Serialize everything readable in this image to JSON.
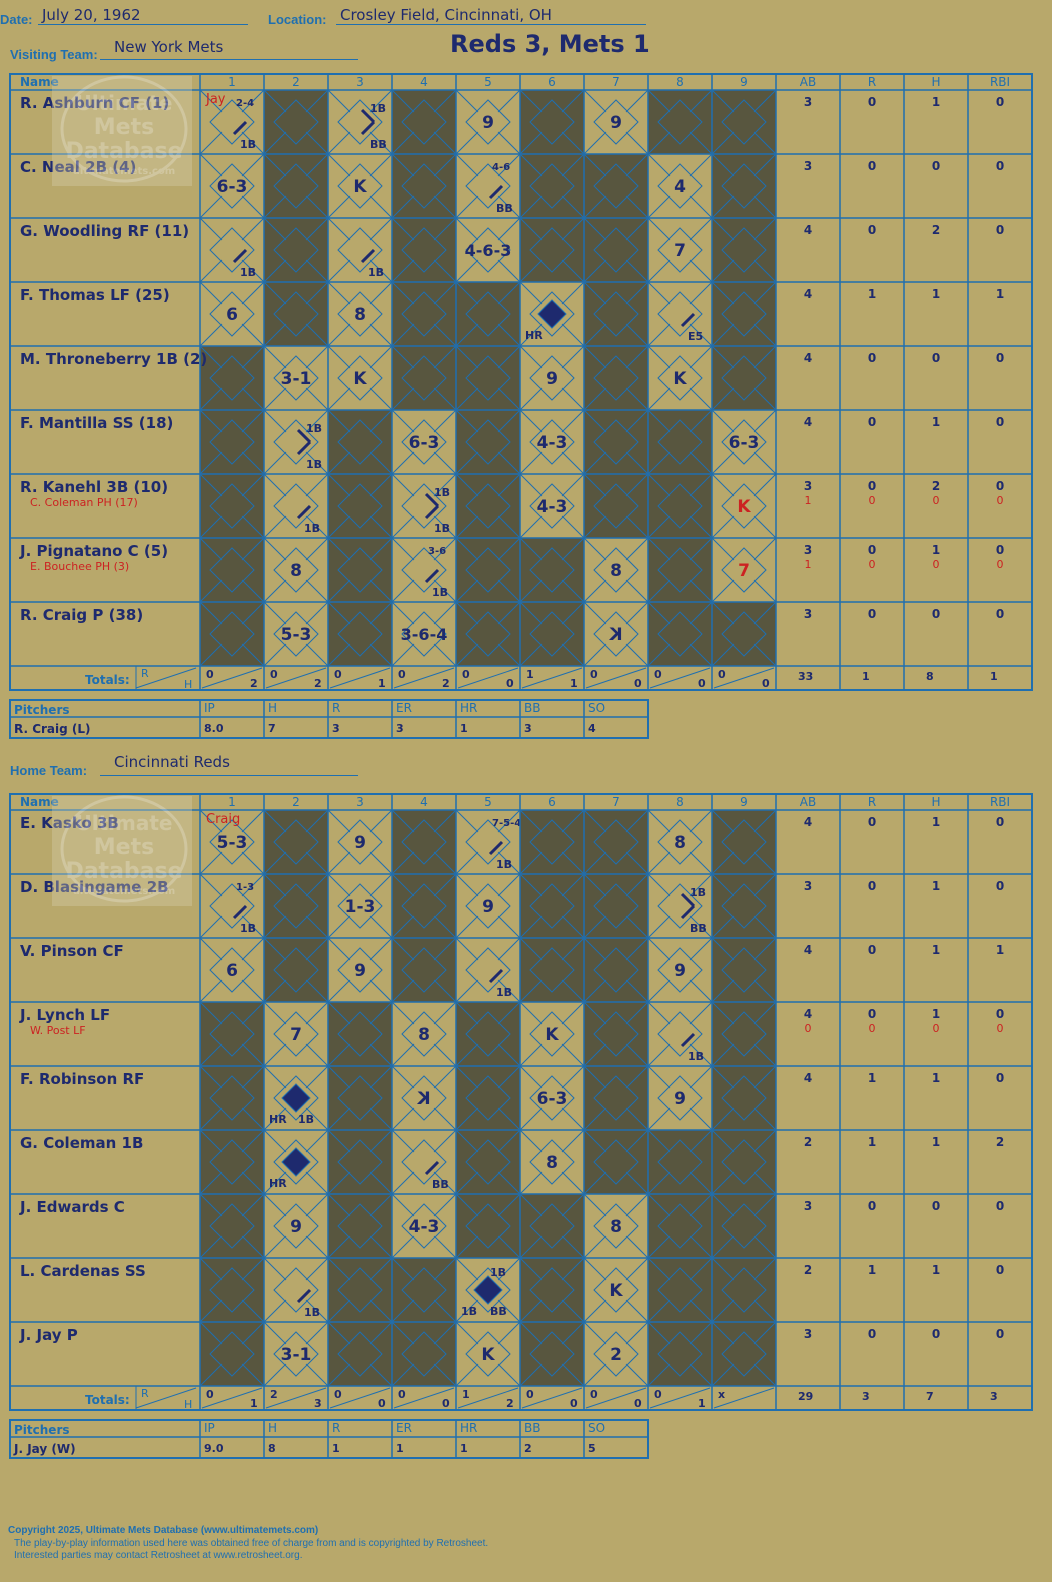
{
  "header": {
    "date_label": "Date:",
    "date": "July 20, 1962",
    "location_label": "Location:",
    "location": "Crosley Field, Cincinnati, OH",
    "title": "Reds 3, Mets 1",
    "visiting_label": "Visiting Team:",
    "visiting_team": "New York Mets",
    "home_label": "Home Team:",
    "home_team": "Cincinnati Reds"
  },
  "grid_labels": {
    "name": "Name",
    "innings": [
      "1",
      "2",
      "3",
      "4",
      "5",
      "6",
      "7",
      "8",
      "9"
    ],
    "stats": [
      "AB",
      "R",
      "H",
      "RBI"
    ],
    "totals": "Totals:",
    "r": "R",
    "h": "H"
  },
  "watermark": {
    "line1": "Ultimate",
    "line2": "Mets",
    "line3": "Database",
    "line4": "ultimatemets.com"
  },
  "visitors": {
    "first_pitcher_note": "Jay",
    "players": [
      {
        "name": "R. Ashburn CF (1)",
        "sub": "",
        "stats": [
          "3",
          "0",
          "1",
          "0"
        ],
        "sub_stats": null
      },
      {
        "name": "C. Neal 2B (4)",
        "sub": "",
        "stats": [
          "3",
          "0",
          "0",
          "0"
        ],
        "sub_stats": null
      },
      {
        "name": "G. Woodling RF (11)",
        "sub": "",
        "stats": [
          "4",
          "0",
          "2",
          "0"
        ],
        "sub_stats": null
      },
      {
        "name": "F. Thomas LF (25)",
        "sub": "",
        "stats": [
          "4",
          "1",
          "1",
          "1"
        ],
        "sub_stats": null
      },
      {
        "name": "M. Throneberry 1B (2)",
        "sub": "",
        "stats": [
          "4",
          "0",
          "0",
          "0"
        ],
        "sub_stats": null
      },
      {
        "name": "F. Mantilla SS (18)",
        "sub": "",
        "stats": [
          "4",
          "0",
          "1",
          "0"
        ],
        "sub_stats": null
      },
      {
        "name": "R. Kanehl 3B (10)",
        "sub": "C. Coleman PH (17)",
        "stats": [
          "3",
          "0",
          "2",
          "0"
        ],
        "sub_stats": [
          "1",
          "0",
          "0",
          "0"
        ]
      },
      {
        "name": "J. Pignatano C (5)",
        "sub": "E. Bouchee PH (3)",
        "stats": [
          "3",
          "0",
          "1",
          "0"
        ],
        "sub_stats": [
          "1",
          "0",
          "0",
          "0"
        ]
      },
      {
        "name": "R. Craig P (38)",
        "sub": "",
        "stats": [
          "3",
          "0",
          "0",
          "0"
        ],
        "sub_stats": null
      }
    ],
    "totals": [
      [
        "0",
        "2"
      ],
      [
        "0",
        "2"
      ],
      [
        "0",
        "1"
      ],
      [
        "0",
        "2"
      ],
      [
        "0",
        "0"
      ],
      [
        "1",
        "1"
      ],
      [
        "0",
        "0"
      ],
      [
        "0",
        "0"
      ],
      [
        "0",
        "0"
      ]
    ],
    "total_stats": [
      "33",
      "1",
      "8",
      "1"
    ]
  },
  "home": {
    "first_pitcher_note": "Craig",
    "players": [
      {
        "name": "E. Kasko 3B",
        "sub": "",
        "stats": [
          "4",
          "0",
          "1",
          "0"
        ],
        "sub_stats": null
      },
      {
        "name": "D. Blasingame 2B",
        "sub": "",
        "stats": [
          "3",
          "0",
          "1",
          "0"
        ],
        "sub_stats": null
      },
      {
        "name": "V. Pinson CF",
        "sub": "",
        "stats": [
          "4",
          "0",
          "1",
          "1"
        ],
        "sub_stats": null
      },
      {
        "name": "J. Lynch LF",
        "sub": "W. Post LF",
        "stats": [
          "4",
          "0",
          "1",
          "0"
        ],
        "sub_stats": [
          "0",
          "0",
          "0",
          "0"
        ]
      },
      {
        "name": "F. Robinson RF",
        "sub": "",
        "stats": [
          "4",
          "1",
          "1",
          "0"
        ],
        "sub_stats": null
      },
      {
        "name": "G. Coleman 1B",
        "sub": "",
        "stats": [
          "2",
          "1",
          "1",
          "2"
        ],
        "sub_stats": null
      },
      {
        "name": "J. Edwards C",
        "sub": "",
        "stats": [
          "3",
          "0",
          "0",
          "0"
        ],
        "sub_stats": null
      },
      {
        "name": "L. Cardenas SS",
        "sub": "",
        "stats": [
          "2",
          "1",
          "1",
          "0"
        ],
        "sub_stats": null
      },
      {
        "name": "J. Jay P",
        "sub": "",
        "stats": [
          "3",
          "0",
          "0",
          "0"
        ],
        "sub_stats": null
      }
    ],
    "totals": [
      [
        "0",
        "1"
      ],
      [
        "2",
        "3"
      ],
      [
        "0",
        "0"
      ],
      [
        "0",
        "0"
      ],
      [
        "1",
        "2"
      ],
      [
        "0",
        "0"
      ],
      [
        "0",
        "0"
      ],
      [
        "0",
        "1"
      ],
      [
        "x",
        ""
      ]
    ],
    "total_stats": [
      "29",
      "3",
      "7",
      "3"
    ]
  },
  "plays_visitors": [
    [
      {
        "c": "Jay",
        "note": "2-4",
        "base": "1B",
        "reach": 1,
        "pen": "left"
      },
      null,
      {
        "base": "1B",
        "b2": "BB",
        "reach": 2
      },
      null,
      {
        "center": "9"
      },
      null,
      {
        "center": "9"
      },
      null,
      null
    ],
    [
      {
        "center": "6-3"
      },
      null,
      {
        "center": "K"
      },
      null,
      {
        "note": "4-6",
        "base": "BB",
        "reach": 1
      },
      null,
      null,
      {
        "center": "4"
      },
      null
    ],
    [
      {
        "base": "1B",
        "reach": 1
      },
      null,
      {
        "base": "1B",
        "reach": 1
      },
      null,
      {
        "center": "4-6-3",
        "wide": true
      },
      null,
      null,
      {
        "center": "7"
      },
      null
    ],
    [
      {
        "center": "6"
      },
      null,
      {
        "center": "8"
      },
      null,
      null,
      {
        "hr": true,
        "base": "HR"
      },
      null,
      {
        "base": "E5",
        "reach": 1
      },
      null
    ],
    [
      null,
      {
        "center": "3-1"
      },
      {
        "center": "K"
      },
      null,
      null,
      {
        "center": "9"
      },
      null,
      {
        "center": "K"
      },
      null
    ],
    [
      null,
      {
        "base": "1B",
        "b2": "1B",
        "reach": 2
      },
      null,
      {
        "center": "6-3"
      },
      null,
      {
        "center": "4-3"
      },
      null,
      null,
      {
        "center": "6-3"
      }
    ],
    [
      null,
      {
        "base": "1B",
        "reach": 1
      },
      null,
      {
        "base": "1B",
        "b2": "1B",
        "reach": 2
      },
      null,
      {
        "center": "4-3"
      },
      null,
      null,
      {
        "center": "K",
        "red": true
      }
    ],
    [
      null,
      {
        "center": "8"
      },
      null,
      {
        "note": "3-6",
        "base": "1B",
        "reach": 1
      },
      null,
      null,
      {
        "center": "8"
      },
      null,
      {
        "center": "7",
        "red": true
      }
    ],
    [
      null,
      {
        "center": "5-3"
      },
      null,
      {
        "center": "3-6-4",
        "wide": true
      },
      null,
      null,
      {
        "center": "K",
        "rev": true
      },
      null,
      null
    ]
  ],
  "plays_home": [
    [
      {
        "c": "Craig",
        "center": "5-3"
      },
      null,
      {
        "center": "9"
      },
      null,
      {
        "note": "7-5-4",
        "base": "1B",
        "reach": 1
      },
      null,
      null,
      {
        "center": "8"
      },
      null
    ],
    [
      {
        "note": "1-3",
        "base": "1B",
        "reach": 1
      },
      null,
      {
        "center": "1-3"
      },
      null,
      {
        "center": "9"
      },
      null,
      null,
      {
        "base": "1B",
        "b2": "BB",
        "reach": 2
      },
      null
    ],
    [
      {
        "center": "6"
      },
      null,
      {
        "center": "9"
      },
      null,
      {
        "base": "1B",
        "reach": 1
      },
      null,
      null,
      {
        "center": "9"
      },
      null
    ],
    [
      null,
      {
        "center": "7"
      },
      null,
      {
        "center": "8"
      },
      null,
      {
        "center": "K"
      },
      null,
      {
        "base": "1B",
        "reach": 1
      },
      null
    ],
    [
      null,
      {
        "hr": true,
        "base": "HR",
        "b2": "1B"
      },
      null,
      {
        "center": "K",
        "rev": true
      },
      null,
      {
        "center": "6-3"
      },
      null,
      {
        "center": "9"
      },
      null
    ],
    [
      null,
      {
        "hr": true,
        "base": "HR"
      },
      null,
      {
        "base": "BB",
        "reach": 1
      },
      null,
      {
        "center": "8"
      },
      null,
      null,
      null
    ],
    [
      null,
      {
        "center": "9"
      },
      null,
      {
        "center": "4-3"
      },
      null,
      null,
      {
        "center": "8"
      },
      null,
      null
    ],
    [
      null,
      {
        "base": "1B",
        "reach": 1
      },
      null,
      null,
      {
        "hr": true,
        "base": "1B",
        "b2": "BB",
        "note": "1B"
      },
      null,
      {
        "center": "K"
      },
      null,
      null
    ],
    [
      null,
      {
        "center": "3-1"
      },
      null,
      null,
      {
        "center": "K"
      },
      null,
      {
        "center": "2"
      },
      null,
      null
    ]
  ],
  "pitching_visitors": {
    "label": "Pitchers",
    "cols": [
      "IP",
      "H",
      "R",
      "ER",
      "HR",
      "BB",
      "SO"
    ],
    "rows": [
      {
        "name": "R. Craig (L)",
        "vals": [
          "8.0",
          "7",
          "3",
          "3",
          "1",
          "3",
          "4"
        ]
      }
    ]
  },
  "pitching_home": {
    "label": "Pitchers",
    "cols": [
      "IP",
      "H",
      "R",
      "ER",
      "HR",
      "BB",
      "SO"
    ],
    "rows": [
      {
        "name": "J. Jay (W)",
        "vals": [
          "9.0",
          "8",
          "1",
          "1",
          "1",
          "2",
          "5"
        ]
      }
    ]
  },
  "footer": {
    "copyright": "Copyright 2025, Ultimate Mets Database (www.ultimatemets.com)",
    "line2": "The play-by-play information used here was obtained free of charge from and is copyrighted by Retrosheet.",
    "line3": "Interested parties may contact Retrosheet at www.retrosheet.org."
  },
  "colors": {
    "bg": "#b8a86b",
    "grid": "#1f6fb0",
    "dark": "#58563f",
    "ink": "#1e2a6e",
    "red": "#cc2222"
  }
}
